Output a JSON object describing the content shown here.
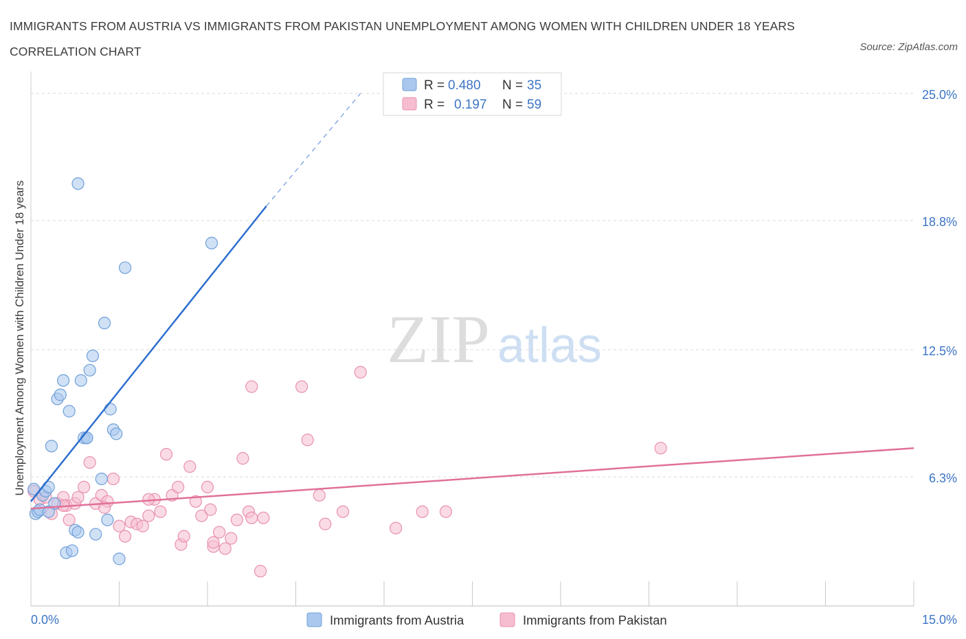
{
  "title": "IMMIGRANTS FROM AUSTRIA VS IMMIGRANTS FROM PAKISTAN UNEMPLOYMENT AMONG WOMEN WITH CHILDREN UNDER 18 YEARS CORRELATION CHART",
  "source": "Source: ZipAtlas.com",
  "watermark": {
    "zip": "ZIP",
    "atlas": "atlas"
  },
  "colors": {
    "austria_fill": "#aac8ee",
    "austria_stroke": "#6f9fd8",
    "austria_line": "#2e6fcf",
    "pakistan_fill": "#f6bdd0",
    "pakistan_stroke": "#e890ad",
    "pakistan_line": "#e0709a",
    "value_text": "#3c74c4",
    "grid": "#d9d9d9"
  },
  "legend_top": [
    {
      "r_label": "R =",
      "r_value": "0.480",
      "n_label": "N =",
      "n_value": "35"
    },
    {
      "r_label": "R =",
      "r_value": "0.197",
      "n_label": "N =",
      "n_value": "59"
    }
  ],
  "chart_data": {
    "type": "scatter",
    "title": "IMMIGRANTS FROM AUSTRIA VS IMMIGRANTS FROM PAKISTAN UNEMPLOYMENT AMONG WOMEN WITH CHILDREN UNDER 18 YEARS CORRELATION CHART",
    "xlabel": "",
    "ylabel": "Unemployment Among Women with Children Under 18 years",
    "xlim": [
      0,
      15
    ],
    "ylim": [
      0,
      25.6
    ],
    "x_tick_labels": [
      {
        "value": 0,
        "label": "0.0%"
      },
      {
        "value": 15,
        "label": "15.0%"
      }
    ],
    "y_tick_labels": [
      {
        "value": 6.3,
        "label": "6.3%"
      },
      {
        "value": 12.5,
        "label": "12.5%"
      },
      {
        "value": 18.8,
        "label": "18.8%"
      },
      {
        "value": 25.0,
        "label": "25.0%"
      }
    ],
    "grid": true,
    "legend_position": "bottom",
    "series": [
      {
        "name": "Immigrants from Austria",
        "R": 0.48,
        "N": 35,
        "points": [
          [
            0.05,
            5.7
          ],
          [
            0.08,
            4.5
          ],
          [
            0.12,
            4.6
          ],
          [
            0.15,
            4.7
          ],
          [
            0.2,
            5.4
          ],
          [
            0.25,
            5.6
          ],
          [
            0.3,
            5.8
          ],
          [
            0.35,
            7.8
          ],
          [
            0.4,
            5.0
          ],
          [
            0.45,
            10.1
          ],
          [
            0.5,
            10.3
          ],
          [
            0.55,
            11.0
          ],
          [
            0.6,
            2.6
          ],
          [
            0.65,
            9.5
          ],
          [
            0.7,
            2.7
          ],
          [
            0.75,
            3.7
          ],
          [
            0.8,
            3.6
          ],
          [
            0.85,
            11.0
          ],
          [
            0.9,
            8.2
          ],
          [
            0.95,
            8.2
          ],
          [
            1.0,
            11.5
          ],
          [
            1.05,
            12.2
          ],
          [
            1.1,
            3.5
          ],
          [
            1.2,
            6.2
          ],
          [
            1.25,
            13.8
          ],
          [
            1.3,
            4.2
          ],
          [
            1.35,
            9.6
          ],
          [
            1.4,
            8.6
          ],
          [
            1.45,
            8.4
          ],
          [
            1.5,
            2.3
          ],
          [
            1.6,
            16.5
          ],
          [
            0.8,
            20.6
          ],
          [
            3.07,
            17.7
          ],
          [
            0.95,
            8.2
          ],
          [
            0.3,
            4.6
          ]
        ],
        "trend": {
          "x": [
            0,
            4.0
          ],
          "y": [
            5.1,
            19.5
          ],
          "dashed_to": [
            5.6,
            25.0
          ]
        }
      },
      {
        "name": "Immigrants from Pakistan",
        "R": 0.197,
        "N": 59,
        "points": [
          [
            0.05,
            5.6
          ],
          [
            0.15,
            5.2
          ],
          [
            0.25,
            5.3
          ],
          [
            0.35,
            4.5
          ],
          [
            0.45,
            5.0
          ],
          [
            0.55,
            5.3
          ],
          [
            0.6,
            4.9
          ],
          [
            0.65,
            4.2
          ],
          [
            0.75,
            5.0
          ],
          [
            0.8,
            5.3
          ],
          [
            0.9,
            5.8
          ],
          [
            1.0,
            7.0
          ],
          [
            1.1,
            5.0
          ],
          [
            1.2,
            5.4
          ],
          [
            1.3,
            5.1
          ],
          [
            1.4,
            6.2
          ],
          [
            1.5,
            3.9
          ],
          [
            1.6,
            3.4
          ],
          [
            1.7,
            4.1
          ],
          [
            1.8,
            4.0
          ],
          [
            1.9,
            3.9
          ],
          [
            2.0,
            4.4
          ],
          [
            2.1,
            5.2
          ],
          [
            2.2,
            4.6
          ],
          [
            2.3,
            7.4
          ],
          [
            2.4,
            5.4
          ],
          [
            2.5,
            5.8
          ],
          [
            2.55,
            3.0
          ],
          [
            2.6,
            3.4
          ],
          [
            2.7,
            6.8
          ],
          [
            2.8,
            5.1
          ],
          [
            2.9,
            4.4
          ],
          [
            3.0,
            5.8
          ],
          [
            3.05,
            4.7
          ],
          [
            3.1,
            2.9
          ],
          [
            3.2,
            3.6
          ],
          [
            3.3,
            2.8
          ],
          [
            3.4,
            3.3
          ],
          [
            3.5,
            4.2
          ],
          [
            3.6,
            7.2
          ],
          [
            3.7,
            4.6
          ],
          [
            3.75,
            4.3
          ],
          [
            3.9,
            1.7
          ],
          [
            3.95,
            4.3
          ],
          [
            4.6,
            10.7
          ],
          [
            4.7,
            8.1
          ],
          [
            4.9,
            5.4
          ],
          [
            5.0,
            4.0
          ],
          [
            5.3,
            4.6
          ],
          [
            5.6,
            11.4
          ],
          [
            6.2,
            3.8
          ],
          [
            6.65,
            4.6
          ],
          [
            7.05,
            4.6
          ],
          [
            10.7,
            7.7
          ],
          [
            3.75,
            10.7
          ],
          [
            3.1,
            3.1
          ],
          [
            0.55,
            4.9
          ],
          [
            1.25,
            4.8
          ],
          [
            2.0,
            5.2
          ]
        ],
        "trend": {
          "x": [
            0,
            15
          ],
          "y": [
            4.75,
            7.7
          ]
        }
      }
    ]
  }
}
